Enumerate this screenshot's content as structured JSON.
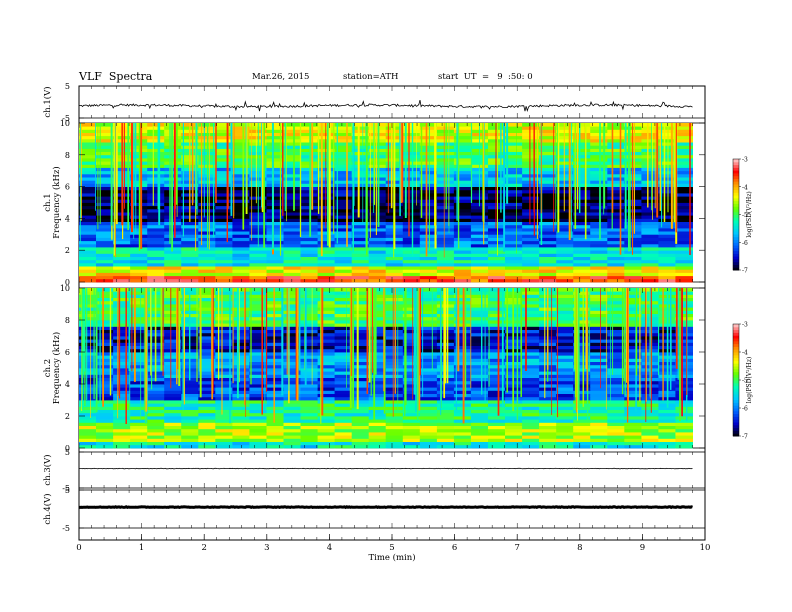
{
  "header": {
    "title": "VLF  Spectra",
    "date": "Mar.26, 2015",
    "station": "station=ATH",
    "start": "start  UT  =   9  :50: 0"
  },
  "chart_data": [
    {
      "type": "line",
      "panel": "ch1-waveform",
      "ylabel": "ch.1(V)",
      "ylim": [
        -5,
        5
      ],
      "yticks": [
        "5",
        "-5"
      ],
      "baseline_v": -1.2,
      "xlim": [
        0,
        10
      ],
      "data_end_min": 9.8
    },
    {
      "type": "heatmap",
      "panel": "ch1-spectrogram",
      "ylabel_top": "ch.1",
      "ylabel": "Frequency  (kHz)",
      "ylim": [
        0,
        10
      ],
      "yticks": [
        "0",
        "2",
        "4",
        "6",
        "8",
        "10"
      ],
      "xlim": [
        0,
        10
      ],
      "data_end_min": 9.8,
      "colorbar": {
        "label": "log(PSD(V²/Hz)",
        "range": [
          -7,
          -3
        ],
        "ticks": [
          "-3",
          "-4",
          "-5",
          "-6",
          "-7"
        ]
      },
      "bands_khz": [
        {
          "f0": 0,
          "f1": 0.35,
          "log_psd": -3.6
        },
        {
          "f0": 0.35,
          "f1": 1.0,
          "log_psd": -4.3
        },
        {
          "f0": 1.0,
          "f1": 2.2,
          "log_psd": -5.4
        },
        {
          "f0": 2.2,
          "f1": 3.8,
          "log_psd": -6.1
        },
        {
          "f0": 3.8,
          "f1": 6.0,
          "log_psd": -6.8
        },
        {
          "f0": 6.0,
          "f1": 7.2,
          "log_psd": -5.7
        },
        {
          "f0": 7.2,
          "f1": 8.8,
          "log_psd": -5.0
        },
        {
          "f0": 8.8,
          "f1": 10,
          "log_psd": -4.4
        }
      ]
    },
    {
      "type": "heatmap",
      "panel": "ch2-spectrogram",
      "ylabel_top": "ch.2",
      "ylabel": "Frequency  (kHz)",
      "ylim": [
        0,
        10
      ],
      "yticks": [
        "0",
        "2",
        "4",
        "6",
        "8",
        "10"
      ],
      "xlim": [
        0,
        10
      ],
      "data_end_min": 9.8,
      "colorbar": {
        "label": "log(PSD(V²/Hz)",
        "range": [
          -7,
          -3
        ],
        "ticks": [
          "-3",
          "-4",
          "-5",
          "-6",
          "-7"
        ]
      },
      "bands_khz": [
        {
          "f0": 0,
          "f1": 0.4,
          "log_psd": -5.4
        },
        {
          "f0": 0.4,
          "f1": 1.6,
          "log_psd": -4.6
        },
        {
          "f0": 1.6,
          "f1": 3.0,
          "log_psd": -5.2
        },
        {
          "f0": 3.0,
          "f1": 4.5,
          "log_psd": -6.2
        },
        {
          "f0": 4.5,
          "f1": 6.0,
          "log_psd": -5.9
        },
        {
          "f0": 6.0,
          "f1": 7.6,
          "log_psd": -6.5
        },
        {
          "f0": 7.6,
          "f1": 10,
          "log_psd": -5.0
        }
      ]
    },
    {
      "type": "line",
      "panel": "ch3-waveform",
      "ylabel": "ch.3(V)",
      "ylim": [
        -5,
        5
      ],
      "yticks": [
        "5",
        "-5"
      ],
      "baseline_v": 0.4,
      "xlim": [
        0,
        10
      ],
      "data_end_min": 9.8
    },
    {
      "type": "line",
      "panel": "ch4-waveform",
      "ylabel": "ch.4(V)",
      "ylim": [
        -5,
        5
      ],
      "yticks": [
        "5",
        "-5"
      ],
      "baseline_v": 0.5,
      "xlim": [
        0,
        10
      ],
      "data_end_min": 9.8
    }
  ],
  "xaxis": {
    "label": "Time  (min)",
    "ticks": [
      "0",
      "1",
      "2",
      "3",
      "4",
      "5",
      "6",
      "7",
      "8",
      "9",
      "10"
    ]
  },
  "colors": {
    "axis": "#000000",
    "waveform": "#000000",
    "colormap": [
      "#000000",
      "#0000c8",
      "#0064ff",
      "#00c8ff",
      "#00ffb4",
      "#64ff00",
      "#ffff00",
      "#ff9600",
      "#ff0000",
      "#ffd2d2"
    ]
  }
}
